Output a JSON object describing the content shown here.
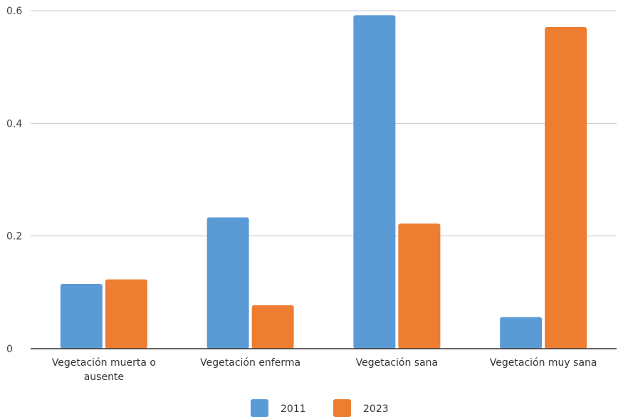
{
  "chart_data": {
    "type": "bar",
    "title": "",
    "xlabel": "",
    "ylabel": "",
    "categories": [
      [
        "Vegetación muerta o",
        "ausente"
      ],
      [
        "Vegetación enferma"
      ],
      [
        "Vegetación sana"
      ],
      [
        "Vegetación muy sana"
      ]
    ],
    "series": [
      {
        "name": "2011",
        "color": "#5B9BD5",
        "values": [
          0.115,
          0.233,
          0.592,
          0.056
        ]
      },
      {
        "name": "2023",
        "color": "#ED7D31",
        "values": [
          0.123,
          0.077,
          0.222,
          0.571
        ]
      }
    ],
    "yticks": [
      "0",
      "0.2",
      "0.4",
      "0.6"
    ],
    "ytick_values": [
      0,
      0.2,
      0.4,
      0.6
    ],
    "ylim": [
      0,
      0.6
    ],
    "grid": true,
    "legend": "bottom"
  }
}
